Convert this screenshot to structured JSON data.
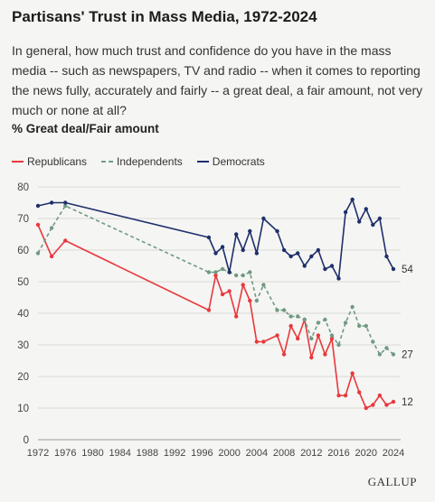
{
  "title": "Partisans' Trust in Mass Media, 1972-2024",
  "subtitle": "In general, how much trust and confidence do you have in the mass media -- such as newspapers, TV and radio -- when it comes to reporting the news fully, accurately and fairly -- a great deal, a fair amount, not very much or none at all?",
  "measure_label": "% Great deal/Fair amount",
  "brand": "GALLUP",
  "colors": {
    "republicans": "#e8383d",
    "independents": "#6f9a82",
    "democrats": "#1e2f6b",
    "grid": "#d9d9d6"
  },
  "chart_data": {
    "type": "line",
    "ylim": [
      0,
      80
    ],
    "xlim": [
      1972,
      2024
    ],
    "yticks": [
      0,
      10,
      20,
      30,
      40,
      50,
      60,
      70,
      80
    ],
    "xticks": [
      1972,
      1976,
      1980,
      1984,
      1988,
      1992,
      1996,
      2000,
      2004,
      2008,
      2012,
      2016,
      2020,
      2024
    ],
    "grid": true,
    "legend_position": "top-left",
    "series": [
      {
        "name": "Republicans",
        "style": "solid",
        "color": "#e8383d",
        "end_label": "12",
        "x": [
          1972,
          1974,
          1976,
          1997,
          1998,
          1999,
          2000,
          2001,
          2002,
          2003,
          2004,
          2005,
          2007,
          2008,
          2009,
          2010,
          2011,
          2012,
          2013,
          2014,
          2015,
          2016,
          2017,
          2018,
          2019,
          2020,
          2021,
          2022,
          2023,
          2024
        ],
        "y": [
          68,
          58,
          63,
          41,
          52,
          46,
          47,
          39,
          49,
          44,
          31,
          31,
          33,
          27,
          36,
          32,
          38,
          26,
          33,
          27,
          32,
          14,
          14,
          21,
          15,
          10,
          11,
          14,
          11,
          12
        ]
      },
      {
        "name": "Independents",
        "style": "dashed",
        "color": "#6f9a82",
        "end_label": "27",
        "x": [
          1972,
          1974,
          1976,
          1997,
          1998,
          1999,
          2000,
          2001,
          2002,
          2003,
          2004,
          2005,
          2007,
          2008,
          2009,
          2010,
          2011,
          2012,
          2013,
          2014,
          2015,
          2016,
          2017,
          2018,
          2019,
          2020,
          2021,
          2022,
          2023,
          2024
        ],
        "y": [
          59,
          67,
          74,
          53,
          53,
          54,
          53,
          52,
          52,
          53,
          44,
          49,
          41,
          41,
          39,
          39,
          38,
          32,
          37,
          38,
          33,
          30,
          37,
          42,
          36,
          36,
          31,
          27,
          29,
          27
        ]
      },
      {
        "name": "Democrats",
        "style": "solid",
        "color": "#1e2f6b",
        "end_label": "54",
        "x": [
          1972,
          1974,
          1976,
          1997,
          1998,
          1999,
          2000,
          2001,
          2002,
          2003,
          2004,
          2005,
          2007,
          2008,
          2009,
          2010,
          2011,
          2012,
          2013,
          2014,
          2015,
          2016,
          2017,
          2018,
          2019,
          2020,
          2021,
          2022,
          2023,
          2024
        ],
        "y": [
          74,
          75,
          75,
          64,
          59,
          61,
          53,
          65,
          60,
          66,
          59,
          70,
          66,
          60,
          58,
          59,
          55,
          58,
          60,
          54,
          55,
          51,
          72,
          76,
          69,
          73,
          68,
          70,
          58,
          54
        ]
      }
    ]
  }
}
